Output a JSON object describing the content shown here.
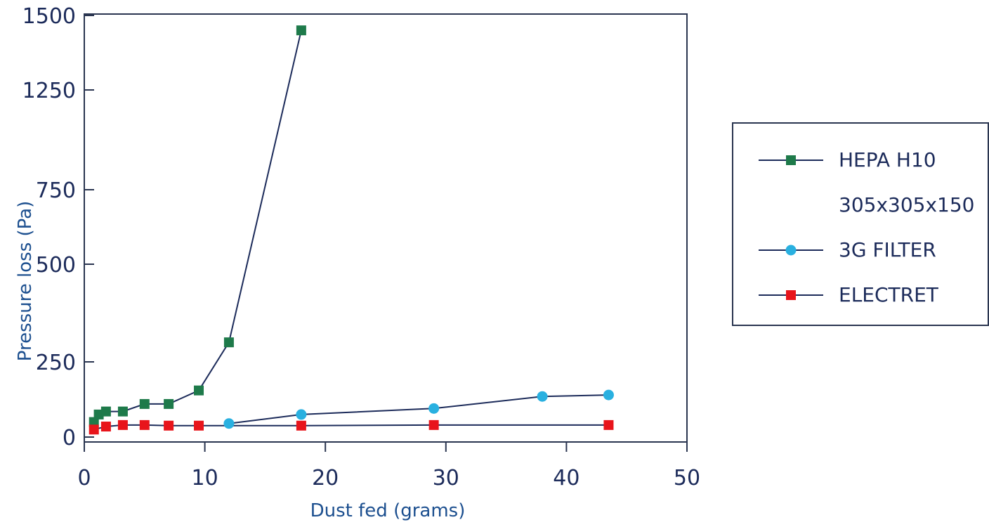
{
  "chart_data": {
    "type": "line",
    "title": "",
    "xlabel": "Dust fed (grams)",
    "ylabel": "Pressure loss (Pa)",
    "xlim": [
      0,
      50
    ],
    "ylim": [
      0,
      1500
    ],
    "x_ticks": [
      0,
      10,
      20,
      30,
      40,
      50
    ],
    "y_ticks": [
      0,
      250,
      500,
      750,
      1250,
      1500
    ],
    "grid": false,
    "legend_position": "right",
    "series": [
      {
        "name": "HEPA H10\n305x305x150",
        "label_line1": "HEPA H10",
        "label_line2": "305x305x150",
        "color": "#1e7a4a",
        "marker": "square",
        "x": [
          0.8,
          1.2,
          1.8,
          3.2,
          5.0,
          7.0,
          9.5,
          12.0,
          18.0
        ],
        "y": [
          50,
          75,
          85,
          85,
          110,
          110,
          155,
          300,
          1450
        ]
      },
      {
        "name": "3G FILTER",
        "color": "#29b0e0",
        "marker": "circle",
        "x": [
          12.0,
          18.0,
          29.0,
          38.0,
          43.5
        ],
        "y": [
          45,
          75,
          95,
          135,
          140
        ]
      },
      {
        "name": "ELECTRET",
        "color": "#e8141b",
        "marker": "square",
        "x": [
          0.8,
          1.8,
          3.2,
          5.0,
          7.0,
          9.5,
          18.0,
          29.0,
          43.5
        ],
        "y": [
          25,
          35,
          40,
          40,
          38,
          38,
          38,
          40,
          40
        ]
      }
    ]
  }
}
